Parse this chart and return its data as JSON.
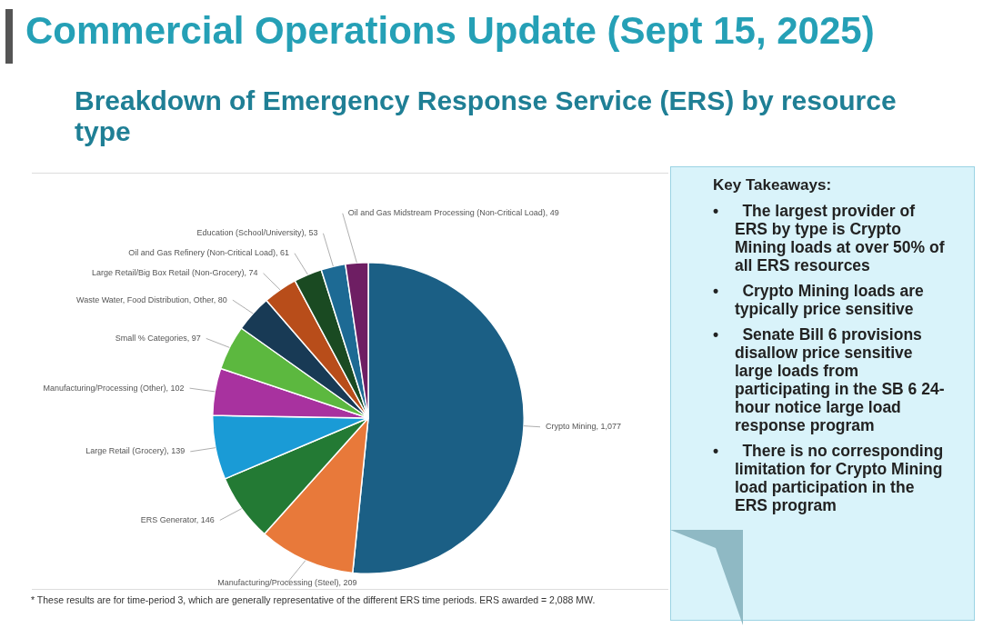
{
  "chart_data": {
    "type": "pie",
    "title": "Commercial Operations Update (Sept 15, 2025)",
    "subtitle": "Breakdown of Emergency Response Service (ERS) by resource type",
    "categories": [
      "Crypto Mining",
      "Manufacturing/Processing (Steel)",
      "ERS Generator",
      "Large Retail (Grocery)",
      "Manufacturing/Processing (Other)",
      "Small % Categories",
      "Waste Water, Food Distribution, Other",
      "Large Retail/Big Box Retail (Non-Grocery)",
      "Oil and Gas Refinery (Non-Critical Load)",
      "Education (School/University)",
      "Oil and Gas Midstream Processing (Non-Critical Load)"
    ],
    "values": [
      1077,
      209,
      146,
      139,
      102,
      97,
      80,
      74,
      61,
      53,
      49
    ],
    "value_labels": [
      "1,077",
      "209",
      "146",
      "139",
      "102",
      "97",
      "80",
      "74",
      "61",
      "53",
      "49"
    ],
    "colors": [
      "#1b5f85",
      "#e8793a",
      "#237a34",
      "#1a9bd6",
      "#a8329f",
      "#5cb83f",
      "#183a55",
      "#b84d1a",
      "#1a4a22",
      "#1d6a94",
      "#6e1e63"
    ],
    "legend": false,
    "annotations": [
      "Key Takeaways:",
      "• The largest provider of ERS by type is Crypto Mining loads at over 50% of all ERS resources",
      "• Crypto Mining loads are typically price sensitive",
      "• Senate Bill 6 provisions disallow price sensitive large loads from participating in the SB 6 24-hour notice large load response program",
      "• There is no corresponding limitation for Crypto Mining load participation in the ERS program",
      "* These results are for time-period 3, which are generally representative of the different ERS time periods.  ERS awarded = 2,088 MW."
    ]
  }
}
